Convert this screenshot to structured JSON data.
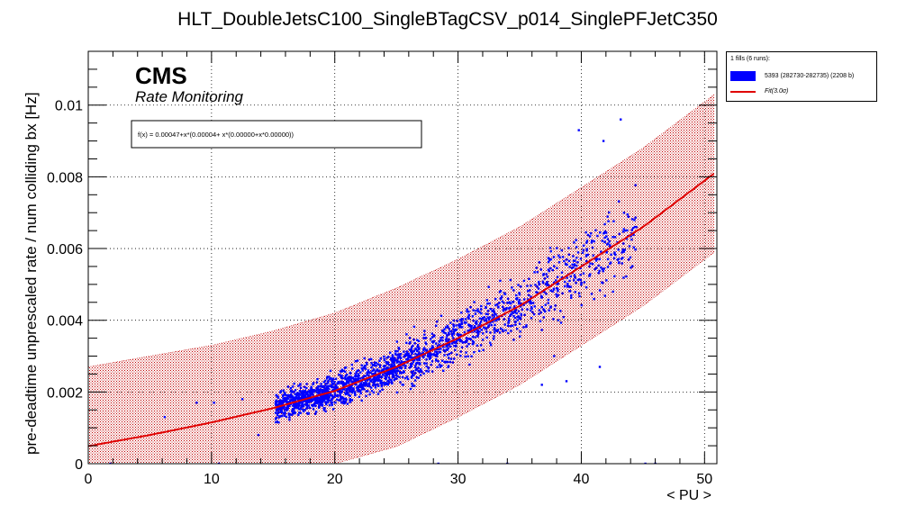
{
  "chart_data": {
    "type": "scatter",
    "title": "HLT_DoubleJetsC100_SingleBTagCSV_p014_SinglePFJetC350",
    "xlabel": "< PU >",
    "ylabel": "pre-deadtime unprescaled rate / num colliding bx [Hz]",
    "xlim": [
      0,
      51
    ],
    "ylim": [
      0,
      0.0115
    ],
    "x_ticks": [
      0,
      10,
      20,
      30,
      40,
      50
    ],
    "y_ticks": [
      0,
      0.002,
      0.004,
      0.006,
      0.008,
      0.01
    ],
    "x_tick_labels": [
      "0",
      "10",
      "20",
      "30",
      "40",
      "50"
    ],
    "y_tick_labels": [
      "0",
      "0.002",
      "0.004",
      "0.006",
      "0.008",
      "0.01"
    ],
    "grid": true,
    "cms_label": "CMS",
    "cms_sublabel": "Rate Monitoring",
    "fit_formula": "f(x) = 0.00047+x*(0.00004+ x*(0.00000+x*0.00000))",
    "fit": {
      "name": "Fit(3.0σ)",
      "color": "#e00000",
      "x": [
        0,
        5,
        10,
        15,
        20,
        25,
        30,
        35,
        40,
        45,
        50.8
      ],
      "y": [
        0.00049,
        0.0008,
        0.00115,
        0.00155,
        0.00203,
        0.0027,
        0.0035,
        0.0044,
        0.0055,
        0.0066,
        0.0081
      ]
    },
    "band": {
      "x": [
        0,
        5,
        10,
        15,
        20,
        25,
        30,
        35,
        40,
        45,
        50.8
      ],
      "upper": [
        0.0027,
        0.003,
        0.0033,
        0.0037,
        0.0042,
        0.0049,
        0.0057,
        0.0066,
        0.0077,
        0.0088,
        0.0103
      ],
      "lower": [
        0.0,
        0.0,
        0.0,
        0.0,
        0.0,
        0.00048,
        0.0013,
        0.0022,
        0.0033,
        0.0044,
        0.0059
      ],
      "color": "#c00000"
    },
    "series": [
      {
        "name": "5393 (282730-282735) (2208 b)",
        "color": "#0000ff",
        "clusters": [
          {
            "x_range": [
              15.2,
              19.5
            ],
            "y_center": 0.00165,
            "y_spread": 0.00045,
            "count": 520
          },
          {
            "x_range": [
              19.5,
              25.0
            ],
            "y_center": 0.0024,
            "y_spread": 0.00055,
            "count": 520
          },
          {
            "x_range": [
              25.0,
              30.0
            ],
            "y_center": 0.0031,
            "y_spread": 0.0007,
            "count": 360
          },
          {
            "x_range": [
              30.0,
              35.0
            ],
            "y_center": 0.004,
            "y_spread": 0.0008,
            "count": 280
          },
          {
            "x_range": [
              35.0,
              40.0
            ],
            "y_center": 0.0051,
            "y_spread": 0.0011,
            "count": 200
          },
          {
            "x_range": [
              40.0,
              44.5
            ],
            "y_center": 0.0062,
            "y_spread": 0.0013,
            "count": 140
          }
        ],
        "outliers": [
          {
            "x": 6.2,
            "y": 0.0013
          },
          {
            "x": 8.8,
            "y": 0.0017
          },
          {
            "x": 10.2,
            "y": 0.0017
          },
          {
            "x": 12.5,
            "y": 0.0018
          },
          {
            "x": 13.8,
            "y": 0.0008
          },
          {
            "x": 38.8,
            "y": 0.0023
          },
          {
            "x": 41.5,
            "y": 0.0027
          },
          {
            "x": 43.2,
            "y": 0.0096
          },
          {
            "x": 41.8,
            "y": 0.009
          },
          {
            "x": 39.8,
            "y": 0.0093
          },
          {
            "x": 36.8,
            "y": 0.0022
          },
          {
            "x": 37.8,
            "y": 0.003
          },
          {
            "x": 45.2,
            "y": 0.0
          },
          {
            "x": 46.0,
            "y": 0.0
          },
          {
            "x": 28.4,
            "y": 0.0
          },
          {
            "x": 34.0,
            "y": 0.0
          },
          {
            "x": 1.8,
            "y": 0.0
          },
          {
            "x": 10.6,
            "y": 0.0
          }
        ]
      }
    ],
    "legend": {
      "position": "top-right-outside",
      "header": "1 fills (6 runs):",
      "entries": [
        {
          "label": "5393 (282730-282735) (2208 b)",
          "kind": "fill",
          "color": "#0000ff"
        },
        {
          "label": "Fit(3.0σ)",
          "kind": "line",
          "color": "#e00000"
        }
      ]
    }
  }
}
